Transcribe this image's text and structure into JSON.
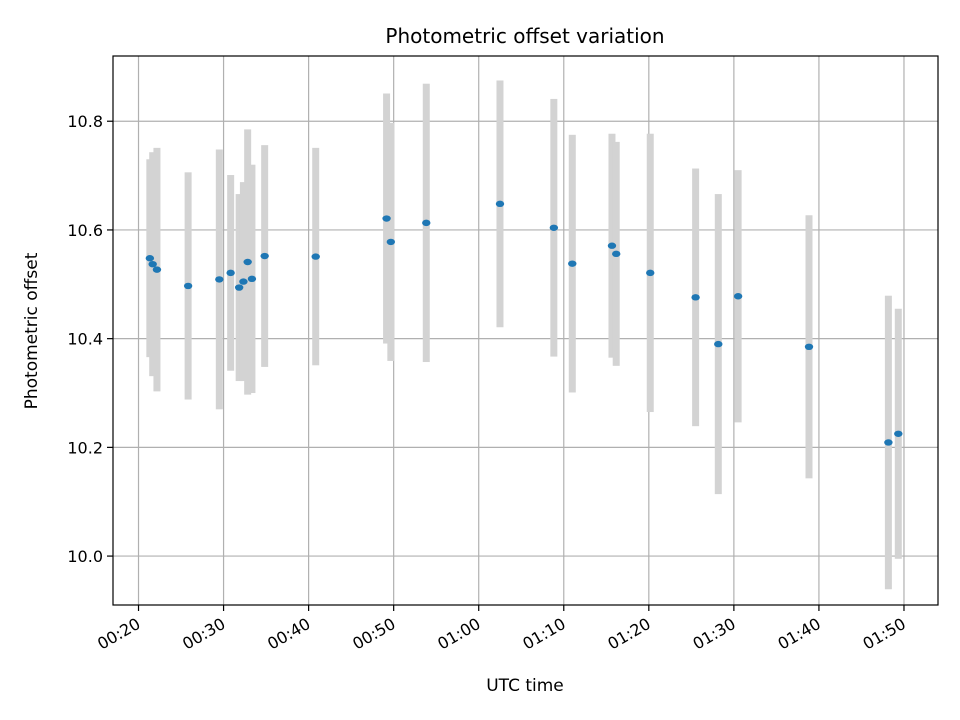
{
  "chart_data": {
    "type": "scatter",
    "title": "Photometric offset variation",
    "xlabel": "UTC time",
    "ylabel": "Photometric offset",
    "xlim": [
      "00:17",
      "01:54"
    ],
    "ylim": [
      9.91,
      10.92
    ],
    "xticks": [
      "00:20",
      "00:30",
      "00:40",
      "00:50",
      "01:00",
      "01:10",
      "01:20",
      "01:30",
      "01:40",
      "01:50"
    ],
    "yticks": [
      "10.0",
      "10.2",
      "10.4",
      "10.6",
      "10.8"
    ],
    "grid": true,
    "marker_color": "#1f77b4",
    "errorbar_color": "#d3d3d3",
    "points": [
      {
        "t": "00:21:20",
        "y": 10.548,
        "err": 0.182
      },
      {
        "t": "00:21:40",
        "y": 10.537,
        "err": 0.206
      },
      {
        "t": "00:22:10",
        "y": 10.527,
        "err": 0.224
      },
      {
        "t": "00:25:50",
        "y": 10.497,
        "err": 0.209
      },
      {
        "t": "00:29:30",
        "y": 10.509,
        "err": 0.239
      },
      {
        "t": "00:30:50",
        "y": 10.521,
        "err": 0.18
      },
      {
        "t": "00:31:50",
        "y": 10.494,
        "err": 0.172
      },
      {
        "t": "00:32:20",
        "y": 10.505,
        "err": 0.183
      },
      {
        "t": "00:32:50",
        "y": 10.541,
        "err": 0.244
      },
      {
        "t": "00:33:20",
        "y": 10.51,
        "err": 0.21
      },
      {
        "t": "00:34:50",
        "y": 10.552,
        "err": 0.204
      },
      {
        "t": "00:40:50",
        "y": 10.551,
        "err": 0.2
      },
      {
        "t": "00:49:10",
        "y": 10.621,
        "err": 0.23
      },
      {
        "t": "00:49:40",
        "y": 10.578,
        "err": 0.219
      },
      {
        "t": "00:53:50",
        "y": 10.613,
        "err": 0.256
      },
      {
        "t": "01:02:30",
        "y": 10.648,
        "err": 0.227
      },
      {
        "t": "01:08:50",
        "y": 10.604,
        "err": 0.237
      },
      {
        "t": "01:11:00",
        "y": 10.538,
        "err": 0.237
      },
      {
        "t": "01:15:40",
        "y": 10.571,
        "err": 0.206
      },
      {
        "t": "01:16:10",
        "y": 10.556,
        "err": 0.206
      },
      {
        "t": "01:20:10",
        "y": 10.521,
        "err": 0.256
      },
      {
        "t": "01:25:30",
        "y": 10.476,
        "err": 0.237
      },
      {
        "t": "01:28:10",
        "y": 10.39,
        "err": 0.276
      },
      {
        "t": "01:30:30",
        "y": 10.478,
        "err": 0.232
      },
      {
        "t": "01:38:50",
        "y": 10.385,
        "err": 0.242
      },
      {
        "t": "01:48:10",
        "y": 10.209,
        "err": 0.27
      },
      {
        "t": "01:49:20",
        "y": 10.225,
        "err": 0.23
      }
    ]
  }
}
